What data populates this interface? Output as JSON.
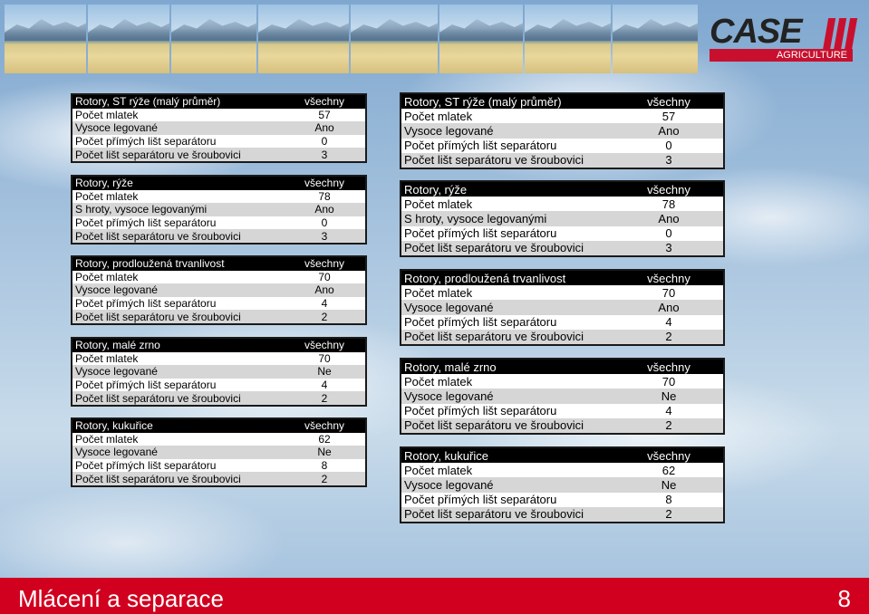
{
  "logo": {
    "brand": "CASE",
    "division": "AGRICULTURE"
  },
  "footer": {
    "title": "Mlácení a separace",
    "page": "8"
  },
  "left_tables": [
    {
      "title": "Rotory, ST rýže (malý průměr)",
      "title_value": "všechny",
      "rows": [
        {
          "label": "Počet mlatek",
          "value": "57"
        },
        {
          "label": "Vysoce legované",
          "value": "Ano"
        },
        {
          "label": "Počet přímých lišt separátoru",
          "value": "0"
        },
        {
          "label": "Počet lišt separátoru ve šroubovici",
          "value": "3"
        }
      ]
    },
    {
      "title": "Rotory, rýže",
      "title_value": "všechny",
      "rows": [
        {
          "label": "Počet mlatek",
          "value": "78"
        },
        {
          "label": "S hroty, vysoce legovanými",
          "value": "Ano"
        },
        {
          "label": "Počet přímých lišt separátoru",
          "value": "0"
        },
        {
          "label": "Počet lišt separátoru ve šroubovici",
          "value": "3"
        }
      ]
    },
    {
      "title": "Rotory, prodloužená trvanlivost",
      "title_value": "všechny",
      "rows": [
        {
          "label": "Počet mlatek",
          "value": "70"
        },
        {
          "label": "Vysoce legované",
          "value": "Ano"
        },
        {
          "label": "Počet přímých lišt separátoru",
          "value": "4"
        },
        {
          "label": "Počet lišt separátoru ve šroubovici",
          "value": "2"
        }
      ]
    },
    {
      "title": "Rotory, malé zrno",
      "title_value": "všechny",
      "rows": [
        {
          "label": "Počet mlatek",
          "value": "70"
        },
        {
          "label": "Vysoce legované",
          "value": "Ne"
        },
        {
          "label": "Počet přímých lišt separátoru",
          "value": "4"
        },
        {
          "label": "Počet lišt separátoru ve šroubovici",
          "value": "2"
        }
      ]
    },
    {
      "title": "Rotory, kukuřice",
      "title_value": "všechny",
      "rows": [
        {
          "label": "Počet mlatek",
          "value": "62"
        },
        {
          "label": "Vysoce legované",
          "value": "Ne"
        },
        {
          "label": "Počet přímých lišt separátoru",
          "value": "8"
        },
        {
          "label": "Počet lišt separátoru ve šroubovici",
          "value": "2"
        }
      ]
    }
  ],
  "right_tables": [
    {
      "title": "Rotory, ST rýže (malý průměr)",
      "title_value": "všechny",
      "rows": [
        {
          "label": "Počet mlatek",
          "value": "57"
        },
        {
          "label": "Vysoce legované",
          "value": "Ano"
        },
        {
          "label": "Počet přímých lišt separátoru",
          "value": "0"
        },
        {
          "label": "Počet lišt separátoru ve šroubovici",
          "value": "3"
        }
      ]
    },
    {
      "title": "Rotory, rýže",
      "title_value": "všechny",
      "rows": [
        {
          "label": "Počet mlatek",
          "value": "78"
        },
        {
          "label": "S hroty, vysoce legovanými",
          "value": "Ano"
        },
        {
          "label": "Počet přímých lišt separátoru",
          "value": "0"
        },
        {
          "label": "Počet lišt separátoru ve šroubovici",
          "value": "3"
        }
      ]
    },
    {
      "title": "Rotory, prodloužená trvanlivost",
      "title_value": "všechny",
      "rows": [
        {
          "label": "Počet mlatek",
          "value": "70"
        },
        {
          "label": "Vysoce legované",
          "value": "Ano"
        },
        {
          "label": "Počet přímých lišt separátoru",
          "value": "4"
        },
        {
          "label": "Počet lišt separátoru ve šroubovici",
          "value": "2"
        }
      ]
    },
    {
      "title": "Rotory, malé zrno",
      "title_value": "všechny",
      "rows": [
        {
          "label": "Počet mlatek",
          "value": "70"
        },
        {
          "label": "Vysoce legované",
          "value": "Ne"
        },
        {
          "label": "Počet přímých lišt separátoru",
          "value": "4"
        },
        {
          "label": "Počet lišt separátoru ve šroubovici",
          "value": "2"
        }
      ]
    },
    {
      "title": "Rotory, kukuřice",
      "title_value": "všechny",
      "rows": [
        {
          "label": "Počet mlatek",
          "value": "62"
        },
        {
          "label": "Vysoce legované",
          "value": "Ne"
        },
        {
          "label": "Počet přímých lišt separátoru",
          "value": "8"
        },
        {
          "label": "Počet lišt separátoru ve šroubovici",
          "value": "2"
        }
      ]
    }
  ]
}
